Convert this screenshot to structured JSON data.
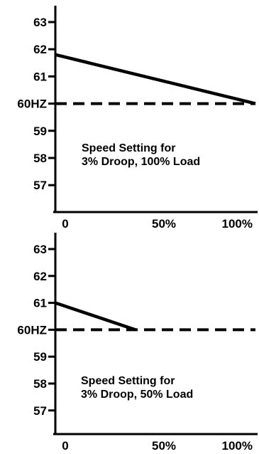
{
  "colors": {
    "ink": "#000000",
    "background": "#ffffff"
  },
  "chart_data": [
    {
      "type": "line",
      "x_tick_labels": [
        "0",
        "50%",
        "100%"
      ],
      "y_tick_labels": [
        "63",
        "62",
        "61",
        "60HZ",
        "59",
        "58",
        "57"
      ],
      "y_ticks": [
        63,
        62,
        61,
        60,
        59,
        58,
        57
      ],
      "xlim": [
        0,
        100
      ],
      "ylim": [
        56,
        64
      ],
      "grid": false,
      "series": [
        {
          "style": "solid",
          "x": [
            0,
            100
          ],
          "y": [
            61.8,
            60
          ]
        },
        {
          "style": "dashed",
          "x": [
            0,
            100
          ],
          "y": [
            60,
            60
          ]
        }
      ],
      "annotation": [
        "Speed Setting for",
        "3% Droop, 100% Load"
      ]
    },
    {
      "type": "line",
      "x_tick_labels": [
        "0",
        "50%",
        "100%"
      ],
      "y_tick_labels": [
        "63",
        "62",
        "61",
        "60HZ",
        "59",
        "58",
        "57"
      ],
      "y_ticks": [
        63,
        62,
        61,
        60,
        59,
        58,
        57
      ],
      "xlim": [
        0,
        100
      ],
      "ylim": [
        56,
        64
      ],
      "grid": false,
      "series": [
        {
          "style": "solid",
          "x": [
            0,
            40
          ],
          "y": [
            61,
            60
          ]
        },
        {
          "style": "dashed",
          "x": [
            0,
            100
          ],
          "y": [
            60,
            60
          ]
        }
      ],
      "annotation": [
        "Speed Setting for",
        "3% Droop, 50% Load"
      ]
    }
  ]
}
